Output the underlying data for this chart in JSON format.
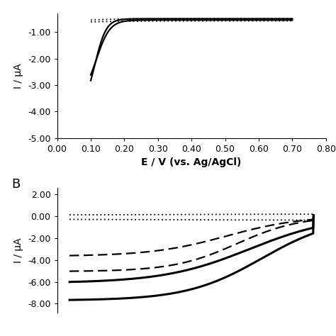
{
  "panel_A": {
    "ylabel": "I / μA",
    "xlabel": "E / V (vs. Ag/AgCl)",
    "xlim": [
      0.0,
      0.8
    ],
    "ylim": [
      -5.0,
      -0.3
    ],
    "xticks": [
      0.0,
      0.1,
      0.2,
      0.3,
      0.4,
      0.5,
      0.6,
      0.7,
      0.8
    ],
    "yticks": [
      -5.0,
      -4.0,
      -3.0,
      -2.0,
      -1.0
    ],
    "solid_color": "#000000",
    "dotted_color": "#000000"
  },
  "panel_B": {
    "label": "B",
    "ylabel": "I / μA",
    "xlim": [
      0.1,
      0.75
    ],
    "ylim": [
      -8.8,
      2.6
    ],
    "yticks": [
      -8.0,
      -6.0,
      -4.0,
      -2.0,
      0.0,
      2.0
    ],
    "solid_color": "#000000",
    "dashed_color": "#000000",
    "dotted_color": "#000000"
  },
  "figure_bg": "#ffffff",
  "font_size": 10,
  "tick_font_size": 9
}
